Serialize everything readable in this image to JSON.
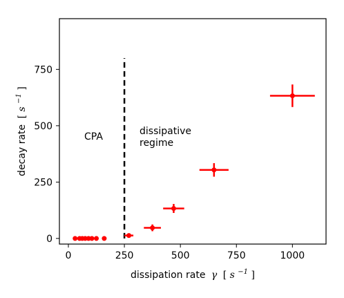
{
  "chart_data": {
    "type": "scatter",
    "title": "",
    "xlabel_parts": {
      "text": "dissipation rate",
      "symbol": "γ",
      "unit_open": "[",
      "unit_base": "s",
      "unit_exp": "−1",
      "unit_close": "]"
    },
    "ylabel_parts": {
      "text": "decay rate",
      "unit_open": "[",
      "unit_base": "s",
      "unit_exp": "−1",
      "unit_close": "]"
    },
    "xlim": [
      -40,
      1150
    ],
    "ylim": [
      -25,
      975
    ],
    "x_ticks": [
      0,
      250,
      500,
      750,
      1000
    ],
    "y_ticks": [
      0,
      250,
      500,
      750
    ],
    "x_tick_labels": [
      "0",
      "250",
      "500",
      "750",
      "1000"
    ],
    "y_tick_labels": [
      "0",
      "250",
      "500",
      "750"
    ],
    "grid": false,
    "series_color": "#ff0000",
    "points": [
      {
        "x": 30,
        "y": 0,
        "xerr": 0,
        "yerr": 0
      },
      {
        "x": 50,
        "y": 0,
        "xerr": 0,
        "yerr": 0
      },
      {
        "x": 62,
        "y": 0,
        "xerr": 0,
        "yerr": 0
      },
      {
        "x": 75,
        "y": 0,
        "xerr": 0,
        "yerr": 0
      },
      {
        "x": 90,
        "y": 0,
        "xerr": 0,
        "yerr": 0
      },
      {
        "x": 105,
        "y": 0,
        "xerr": 0,
        "yerr": 0
      },
      {
        "x": 125,
        "y": 0,
        "xerr": 0,
        "yerr": 0
      },
      {
        "x": 160,
        "y": 0,
        "xerr": 10,
        "yerr": 3
      },
      {
        "x": 270,
        "y": 13,
        "xerr": 20,
        "yerr": 6
      },
      {
        "x": 375,
        "y": 47,
        "xerr": 38,
        "yerr": 15
      },
      {
        "x": 470,
        "y": 133,
        "xerr": 47,
        "yerr": 20
      },
      {
        "x": 650,
        "y": 304,
        "xerr": 65,
        "yerr": 30
      },
      {
        "x": 1000,
        "y": 633,
        "xerr": 100,
        "yerr": 50
      }
    ],
    "threshold_line": {
      "x": 250,
      "y_from": 0,
      "y_to": 800,
      "style": "dashed"
    },
    "annotations": [
      {
        "text": "CPA"
      },
      {
        "text": "dissipative"
      },
      {
        "text": "regime"
      }
    ]
  }
}
